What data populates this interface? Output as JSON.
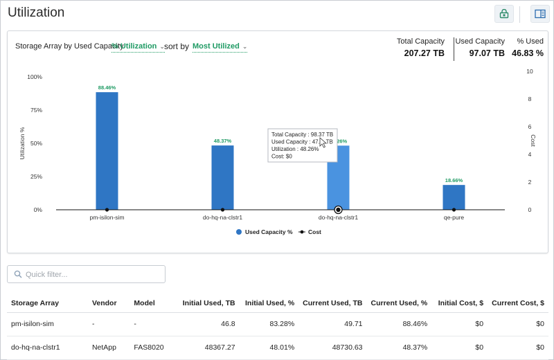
{
  "page": {
    "title": "Utilization"
  },
  "header": {
    "icons": [
      "lock-report-icon",
      "panel-toggle-icon"
    ]
  },
  "controls": {
    "label": "Storage Array by Used Capacity",
    "metric": "% Utilization",
    "sort_label": "sort by",
    "sort_value": "Most Utilized"
  },
  "summary": {
    "total_capacity_label": "Total Capacity",
    "total_capacity_value": "207.27 TB",
    "used_capacity_label": "Used Capacity",
    "used_capacity_value": "97.07 TB",
    "pct_used_label": "% Used",
    "pct_used_value": "46.83 %"
  },
  "chart_data": {
    "type": "bar",
    "categories": [
      "pm-isilon-sim",
      "do-hq-na-clstr1",
      "do-hq-na-clstr1",
      "qe-pure"
    ],
    "series": [
      {
        "name": "Used Capacity %",
        "values": [
          88.46,
          48.37,
          48.26,
          18.66
        ],
        "data_labels": [
          "88.46%",
          "48.37%",
          "48.26%",
          "18.66%"
        ],
        "color": "#2f76c4",
        "highlight_color": "#4a93e0"
      },
      {
        "name": "Cost",
        "type": "line",
        "values": [
          0,
          0,
          0,
          0
        ],
        "color": "#111111"
      }
    ],
    "ylabel": "Utilization %",
    "y2label": "Cost",
    "ylim": [
      0,
      100
    ],
    "y2lim": [
      0,
      10
    ],
    "yticks": [
      "0%",
      "25%",
      "50%",
      "75%",
      "100%"
    ],
    "y2ticks": [
      "0",
      "2",
      "4",
      "6",
      "8",
      "10"
    ],
    "legend_position": "bottom",
    "highlighted_index": 2,
    "tooltip": {
      "lines": [
        "Total Capacity : 98.37 TB",
        "Used Capacity : 47.4. TB",
        "Utilization : 48.26%",
        "Cost: $0"
      ]
    },
    "grid": false
  },
  "filter": {
    "placeholder": "Quick filter...",
    "value": ""
  },
  "table": {
    "columns": [
      "Storage Array",
      "Vendor",
      "Model",
      "Initial Used, TB",
      "Initial Used, %",
      "Current Used, TB",
      "Current Used, %",
      "Initial Cost, $",
      "Current Cost, $"
    ],
    "rows": [
      [
        "pm-isilon-sim",
        "-",
        "-",
        "46.8",
        "83.28%",
        "49.71",
        "88.46%",
        "$0",
        "$0"
      ],
      [
        "do-hq-na-clstr1",
        "NetApp",
        "FAS8020",
        "48367.27",
        "48.01%",
        "48730.63",
        "48.37%",
        "$0",
        "$0"
      ]
    ]
  },
  "colors": {
    "accent": "#1e9a63",
    "bar": "#2f76c4",
    "bar_highlight": "#4a93e0",
    "label_green": "#1e9a63"
  }
}
